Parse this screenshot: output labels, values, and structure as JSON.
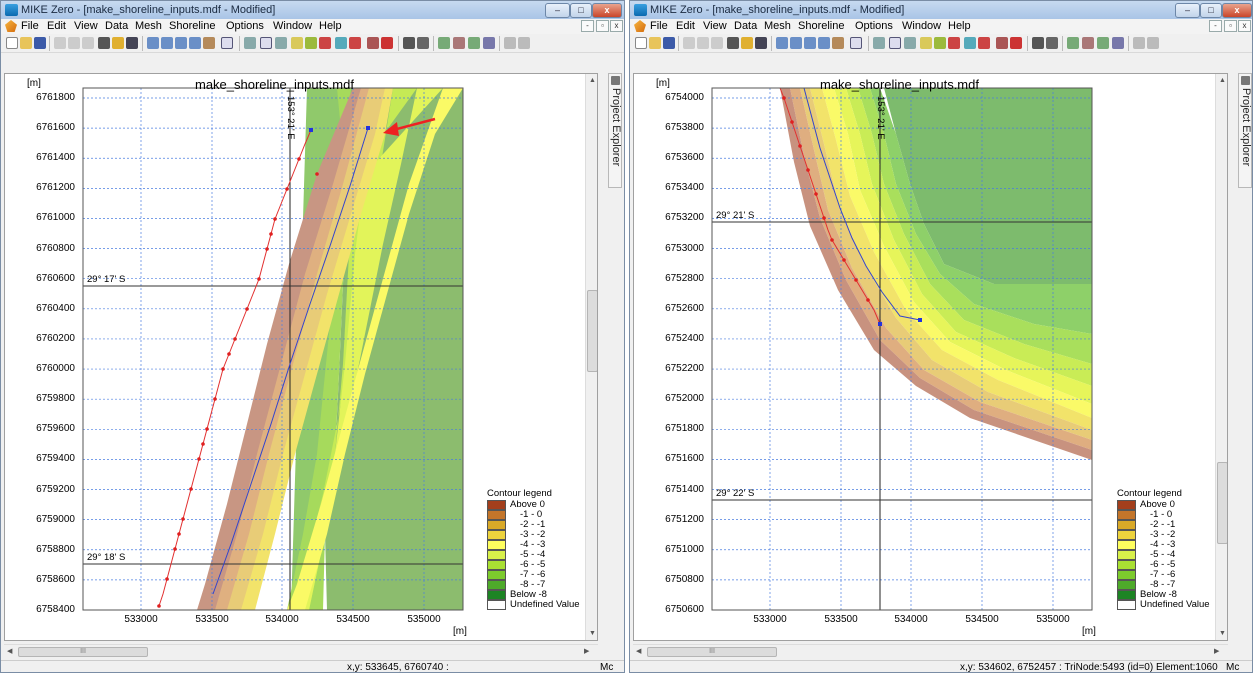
{
  "windows": [
    {
      "title": "MIKE Zero - [make_shoreline_inputs.mdf - Modified]",
      "map_title": "make_shoreline_inputs.mdf",
      "y_unit": "[m]",
      "x_unit": "[m]",
      "y_ticks": [
        "6761800",
        "6761600",
        "6761400",
        "6761200",
        "6761000",
        "6760800",
        "6760600",
        "6760400",
        "6760200",
        "6760000",
        "6759800",
        "6759600",
        "6759400",
        "6759200",
        "6759000",
        "6758800",
        "6758600",
        "6758400"
      ],
      "x_ticks": [
        "533000",
        "533500",
        "534000",
        "534500",
        "535000"
      ],
      "graticule": {
        "lon": "153° 21' E",
        "lat1": "29° 17' S",
        "lat2": "29° 18' S"
      },
      "status": {
        "coords": "x,y: 533645, 6760740  :",
        "right": "Mc"
      }
    },
    {
      "title": "MIKE Zero - [make_shoreline_inputs.mdf - Modified]",
      "map_title": "make_shoreline_inputs.mdf",
      "y_unit": "[m]",
      "x_unit": "[m]",
      "y_ticks": [
        "6754000",
        "6753800",
        "6753600",
        "6753400",
        "6753200",
        "6753000",
        "6752800",
        "6752600",
        "6752400",
        "6752200",
        "6752000",
        "6751800",
        "6751600",
        "6751400",
        "6751200",
        "6751000",
        "6750800",
        "6750600"
      ],
      "x_ticks": [
        "533000",
        "533500",
        "534000",
        "534500",
        "535000"
      ],
      "graticule": {
        "lon": "153° 21' E",
        "lat1": "29° 21' S",
        "lat2": "29° 22' S"
      },
      "status": {
        "coords": "x,y: 534602, 6752457  :  TriNode:5493  (id=0)   Element:1060",
        "right": "Mc"
      }
    }
  ],
  "menu": [
    "File",
    "Edit",
    "View",
    "Data",
    "Mesh",
    "Shoreline",
    "Options",
    "Window",
    "Help"
  ],
  "window_buttons": {
    "minimize": "–",
    "maximize": "□",
    "close": "x"
  },
  "mdi_buttons": {
    "minimize": "-",
    "restore": "▫",
    "close": "x"
  },
  "project_explorer": "Project Explorer",
  "legend": {
    "title": "Contour legend",
    "entries": [
      {
        "label": "Above  0",
        "color": "#a33f1c"
      },
      {
        "label": "-1 -  0",
        "color": "#c3752a"
      },
      {
        "label": "-2 - -1",
        "color": "#d9a928"
      },
      {
        "label": "-3 - -2",
        "color": "#edd33d"
      },
      {
        "label": "-4 - -3",
        "color": "#fefe5e"
      },
      {
        "label": "-5 - -4",
        "color": "#d8f04a"
      },
      {
        "label": "-6 - -5",
        "color": "#a9e033"
      },
      {
        "label": "-7 - -6",
        "color": "#7dcb2d"
      },
      {
        "label": "-8 - -7",
        "color": "#4eaa2a"
      },
      {
        "label": "Below -8",
        "color": "#1d8424"
      },
      {
        "label": "Undefined Value",
        "color": "#ffffff"
      }
    ]
  },
  "scroll_thumb": "III"
}
